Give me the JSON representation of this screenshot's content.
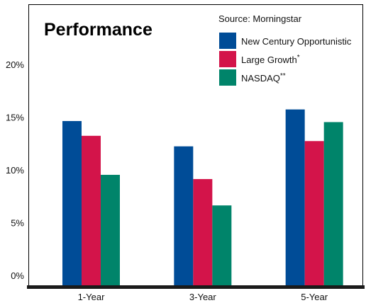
{
  "chart_data": {
    "type": "bar",
    "title": "Performance",
    "source": "Source:  Morningstar",
    "categories": [
      "1-Year",
      "3-Year",
      "5-Year"
    ],
    "series": [
      {
        "name": "New Century Opportunistic",
        "marker": "",
        "color": "#004c97",
        "values": [
          14.7,
          12.3,
          15.8
        ]
      },
      {
        "name": "Large Growth",
        "marker": "*",
        "color": "#d3144a",
        "values": [
          13.3,
          9.2,
          12.8
        ]
      },
      {
        "name": "NASDAQ",
        "marker": "**",
        "color": "#00846a",
        "values": [
          9.6,
          6.7,
          14.6
        ]
      }
    ],
    "yticks": [
      "0%",
      "5%",
      "10%",
      "15%",
      "20%"
    ],
    "ylim": [
      0,
      25
    ],
    "grid": false,
    "legend": "top-right"
  }
}
